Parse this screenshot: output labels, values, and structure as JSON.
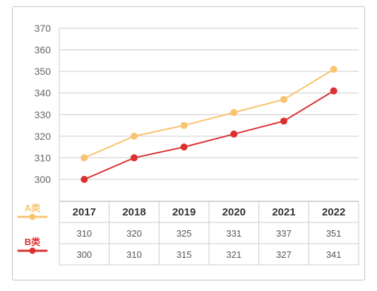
{
  "chart_data": {
    "type": "line",
    "categories": [
      "2017",
      "2018",
      "2019",
      "2020",
      "2021",
      "2022"
    ],
    "series": [
      {
        "name": "A类",
        "color": "#F9C46F",
        "values": [
          310,
          320,
          325,
          331,
          337,
          351
        ]
      },
      {
        "name": "B类",
        "color": "#DC3030",
        "values": [
          300,
          310,
          315,
          321,
          327,
          341
        ]
      }
    ],
    "y_ticks": [
      "300",
      "310",
      "320",
      "330",
      "340",
      "350",
      "360",
      "370"
    ],
    "ylim": [
      300,
      370
    ],
    "grid": true,
    "legend_placement": "left of data table",
    "data_table": true
  }
}
